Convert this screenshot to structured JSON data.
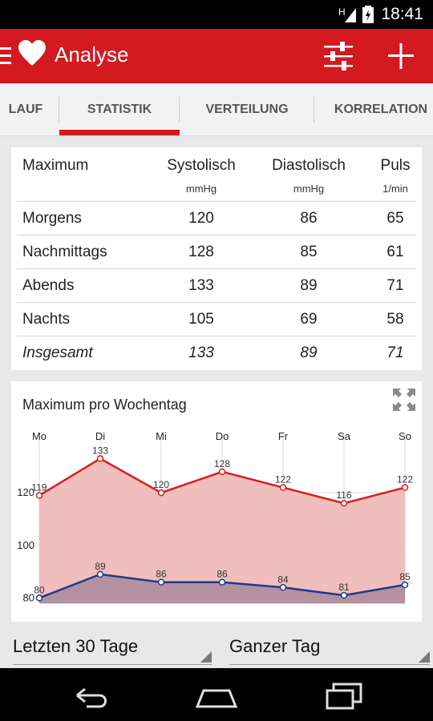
{
  "status_bar": {
    "time": "18:41",
    "network_letter": "H"
  },
  "action_bar": {
    "title": "Analyse"
  },
  "tabs": [
    {
      "label": "LAUF"
    },
    {
      "label": "STATISTIK"
    },
    {
      "label": "VERTEILUNG"
    },
    {
      "label": "KORRELATION"
    }
  ],
  "stats": {
    "header": {
      "label": "Maximum",
      "sys": "Systolisch",
      "sys_unit": "mmHg",
      "dia": "Diastolisch",
      "dia_unit": "mmHg",
      "pulse": "Puls",
      "pulse_unit": "1/min"
    },
    "rows": [
      {
        "label": "Morgens",
        "sys": "120",
        "dia": "86",
        "pulse": "65"
      },
      {
        "label": "Nachmittags",
        "sys": "128",
        "dia": "85",
        "pulse": "61"
      },
      {
        "label": "Abends",
        "sys": "133",
        "dia": "89",
        "pulse": "71"
      },
      {
        "label": "Nachts",
        "sys": "105",
        "dia": "69",
        "pulse": "58"
      },
      {
        "label": "Insgesamt",
        "sys": "133",
        "dia": "89",
        "pulse": "71"
      }
    ]
  },
  "chart_card": {
    "title": "Maximum pro Wochentag"
  },
  "chart_data": {
    "type": "area",
    "title": "Maximum pro Wochentag",
    "categories": [
      "Mo",
      "Di",
      "Mi",
      "Do",
      "Fr",
      "Sa",
      "So"
    ],
    "y_ticks": [
      80,
      100,
      120
    ],
    "ylim": [
      78,
      138
    ],
    "grid": true,
    "series": [
      {
        "values": [
          119,
          133,
          120,
          128,
          122,
          116,
          122
        ],
        "color": "#d42020",
        "fill": "#efbbb8"
      },
      {
        "values": [
          80,
          89,
          86,
          86,
          84,
          81,
          85
        ],
        "color": "#1f3a8c",
        "fill": "#a88a9c"
      }
    ]
  },
  "filters": {
    "period": "Letzten 30 Tage",
    "daytime": "Ganzer Tag"
  },
  "colors": {
    "accent": "#d41920",
    "tab_indicator": "#d41920"
  }
}
